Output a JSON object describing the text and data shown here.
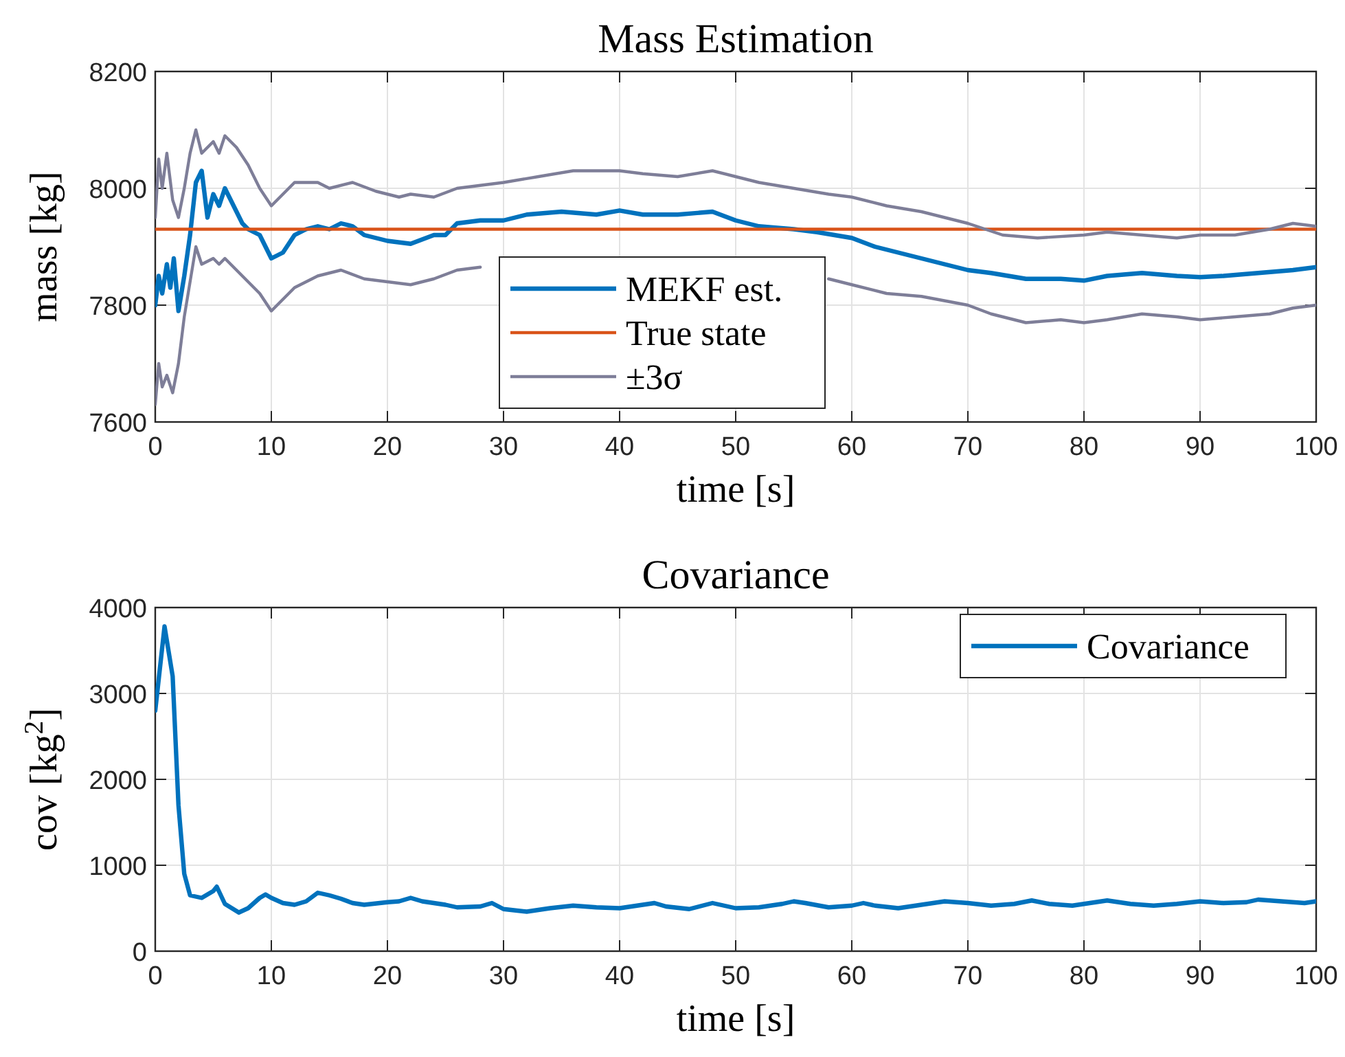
{
  "chart_data": [
    {
      "type": "line",
      "title": "Mass Estimation",
      "xlabel": "time [s]",
      "ylabel": "mass [kg]",
      "xlim": [
        0,
        100
      ],
      "xticks": [
        0,
        10,
        20,
        30,
        40,
        50,
        60,
        70,
        80,
        90,
        100
      ],
      "ylim": [
        7600,
        8200
      ],
      "yticks": [
        7600,
        7800,
        8000,
        8200
      ],
      "grid": true,
      "legend": "bottom",
      "series": [
        {
          "name": "MEKF est.",
          "color": "#0072bd",
          "x": [
            0,
            0.3,
            0.6,
            1,
            1.3,
            1.6,
            2,
            2.5,
            3,
            3.5,
            4,
            4.5,
            5,
            5.5,
            6,
            6.5,
            7,
            7.5,
            8,
            9,
            10,
            11,
            12,
            13,
            14,
            15,
            16,
            17,
            18,
            20,
            22,
            24,
            25,
            26,
            28,
            30,
            32,
            35,
            38,
            40,
            42,
            45,
            48,
            50,
            52,
            55,
            57,
            60,
            62,
            65,
            68,
            70,
            72,
            75,
            78,
            80,
            82,
            85,
            88,
            90,
            92,
            95,
            98,
            100
          ],
          "values": [
            7800,
            7850,
            7820,
            7870,
            7830,
            7880,
            7790,
            7850,
            7920,
            8010,
            8030,
            7950,
            7990,
            7970,
            8000,
            7980,
            7960,
            7940,
            7930,
            7920,
            7880,
            7890,
            7920,
            7930,
            7935,
            7930,
            7940,
            7935,
            7920,
            7910,
            7905,
            7920,
            7920,
            7940,
            7945,
            7945,
            7955,
            7960,
            7955,
            7962,
            7955,
            7955,
            7960,
            7945,
            7935,
            7930,
            7925,
            7915,
            7900,
            7885,
            7870,
            7860,
            7855,
            7845,
            7845,
            7842,
            7850,
            7855,
            7850,
            7848,
            7850,
            7855,
            7860,
            7865
          ]
        },
        {
          "name": "True state",
          "color": "#d95319",
          "x": [
            0,
            100
          ],
          "values": [
            7930,
            7930
          ]
        },
        {
          "name": "±3σ",
          "color": "#7e7e98",
          "x": [
            0,
            0.3,
            0.6,
            1,
            1.5,
            2,
            2.5,
            3,
            3.5,
            4,
            5,
            5.5,
            6,
            7,
            8,
            9,
            10,
            11,
            12,
            14,
            15,
            17,
            19,
            20,
            21,
            22,
            24,
            26,
            28,
            30,
            33,
            36,
            40,
            42,
            45,
            48,
            50,
            52,
            55,
            58,
            60,
            63,
            66,
            70,
            73,
            76,
            80,
            82,
            85,
            88,
            90,
            93,
            96,
            98,
            100
          ],
          "values": [
            7950,
            8050,
            8000,
            8060,
            7980,
            7950,
            8000,
            8060,
            8100,
            8060,
            8080,
            8060,
            8090,
            8070,
            8040,
            8000,
            7970,
            7990,
            8010,
            8010,
            8000,
            8010,
            7995,
            7990,
            7985,
            7990,
            7985,
            8000,
            8005,
            8010,
            8020,
            8030,
            8030,
            8025,
            8020,
            8030,
            8020,
            8010,
            8000,
            7990,
            7985,
            7970,
            7960,
            7940,
            7920,
            7915,
            7920,
            7925,
            7920,
            7915,
            7920,
            7920,
            7930,
            7940,
            7935
          ]
        },
        {
          "color": "#7e7e98",
          "x": [
            0,
            0.3,
            0.6,
            1,
            1.5,
            2,
            2.5,
            3,
            3.5,
            4,
            5,
            5.5,
            6,
            7,
            8,
            9,
            10,
            11,
            12,
            14,
            16,
            18,
            20,
            22,
            24,
            26,
            28,
            30,
            33,
            36,
            40,
            42,
            45,
            48,
            50,
            52,
            55,
            58,
            60,
            63,
            66,
            70,
            72,
            75,
            78,
            80,
            82,
            85,
            88,
            90,
            93,
            96,
            98,
            100
          ],
          "values": [
            7630,
            7700,
            7660,
            7680,
            7650,
            7700,
            7780,
            7840,
            7900,
            7870,
            7880,
            7870,
            7880,
            7860,
            7840,
            7820,
            7790,
            7810,
            7830,
            7850,
            7860,
            7845,
            7840,
            7835,
            7845,
            7860,
            7865,
            null,
            null,
            null,
            null,
            null,
            null,
            null,
            null,
            null,
            null,
            7845,
            7835,
            7820,
            7815,
            7800,
            7785,
            7770,
            7775,
            7770,
            7775,
            7785,
            7780,
            7775,
            7780,
            7785,
            7795,
            7800
          ]
        }
      ]
    },
    {
      "type": "line",
      "title": "Covariance",
      "xlabel": "time [s]",
      "ylabel": "cov [kg$^{2}$]",
      "xlim": [
        0,
        100
      ],
      "xticks": [
        0,
        10,
        20,
        30,
        40,
        50,
        60,
        70,
        80,
        90,
        100
      ],
      "ylim": [
        0,
        4000
      ],
      "yticks": [
        0,
        1000,
        2000,
        3000,
        4000
      ],
      "grid": true,
      "legend": "top right",
      "series": [
        {
          "name": "Covariance",
          "color": "#0072bd",
          "x": [
            0,
            0.8,
            1.5,
            2,
            2.5,
            3,
            4,
            5,
            5.3,
            6,
            7.2,
            8,
            9,
            9.5,
            10,
            11,
            12,
            13,
            14,
            15,
            16,
            17,
            18,
            20,
            21,
            22,
            23,
            24,
            25,
            26,
            28,
            29,
            30,
            32,
            34,
            36,
            38,
            40,
            42,
            43,
            44,
            46,
            48,
            50,
            52,
            54,
            55,
            56,
            58,
            60,
            61,
            62,
            64,
            66,
            68,
            70,
            72,
            74,
            75.5,
            77,
            79,
            81,
            82,
            84,
            86,
            88,
            90,
            92,
            94,
            95,
            97,
            99,
            100
          ],
          "values": [
            2800,
            3780,
            3200,
            1700,
            900,
            650,
            620,
            700,
            750,
            550,
            450,
            500,
            620,
            660,
            620,
            560,
            540,
            580,
            680,
            650,
            610,
            560,
            540,
            570,
            580,
            620,
            580,
            560,
            540,
            510,
            520,
            560,
            490,
            460,
            500,
            530,
            510,
            500,
            540,
            560,
            520,
            490,
            560,
            500,
            510,
            550,
            580,
            560,
            510,
            530,
            560,
            530,
            500,
            540,
            580,
            560,
            530,
            550,
            590,
            550,
            530,
            570,
            590,
            550,
            530,
            550,
            580,
            560,
            570,
            600,
            580,
            560,
            580
          ]
        }
      ]
    }
  ]
}
